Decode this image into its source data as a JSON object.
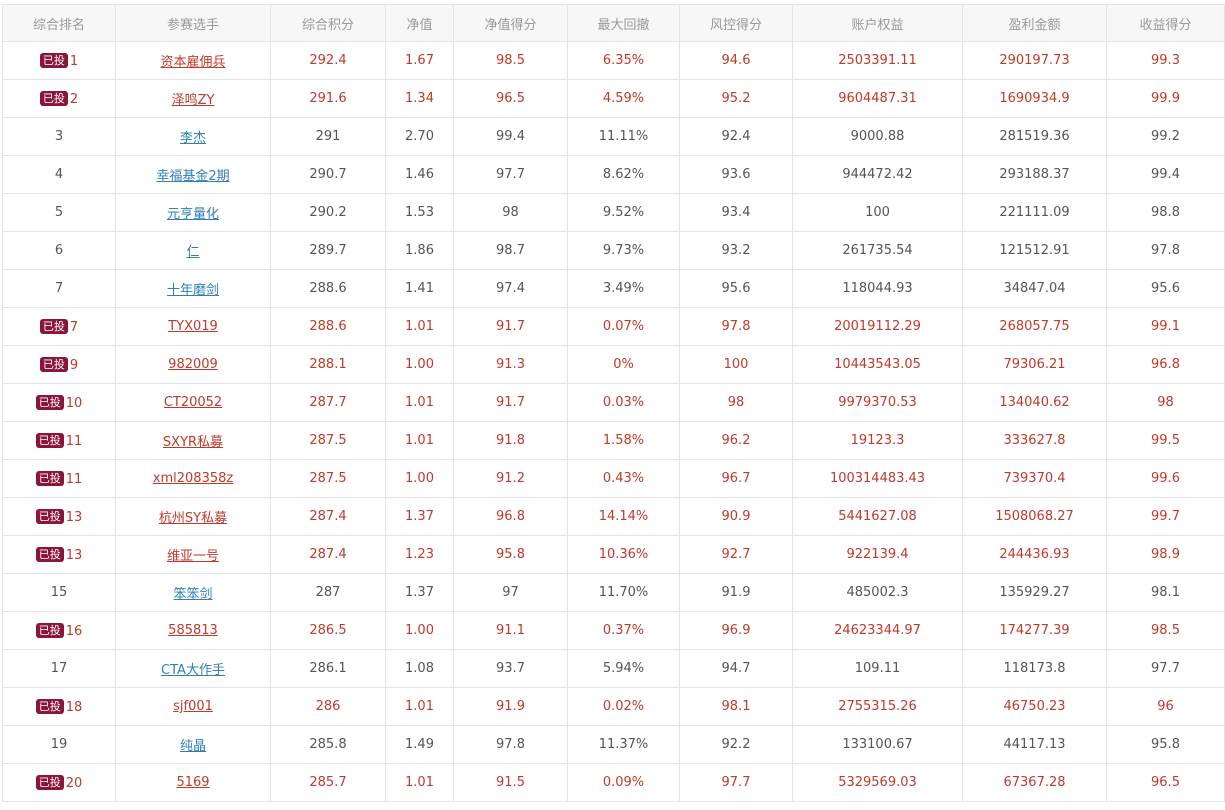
{
  "headers": [
    "综合排名",
    "参赛选手",
    "综合积分",
    "净值",
    "净值得分",
    "最大回撤",
    "风控得分",
    "账户权益",
    "盈利金额",
    "收益得分"
  ],
  "badge_label": "已投",
  "colors": {
    "invested_text": "#c0392b",
    "normal_text": "#555555",
    "link": "#2f7fb5",
    "badge_bg": "#8b1538"
  },
  "rows": [
    {
      "invested": true,
      "rank": "1",
      "player": "资本雇佣兵",
      "score": "292.4",
      "nav": "1.67",
      "nav_score": "98.5",
      "max_dd": "6.35%",
      "risk_score": "94.6",
      "equity": "2503391.11",
      "profit": "290197.73",
      "return_score": "99.3"
    },
    {
      "invested": true,
      "rank": "2",
      "player": "泽鸣ZY",
      "score": "291.6",
      "nav": "1.34",
      "nav_score": "96.5",
      "max_dd": "4.59%",
      "risk_score": "95.2",
      "equity": "9604487.31",
      "profit": "1690934.9",
      "return_score": "99.9"
    },
    {
      "invested": false,
      "rank": "3",
      "player": "李杰",
      "score": "291",
      "nav": "2.70",
      "nav_score": "99.4",
      "max_dd": "11.11%",
      "risk_score": "92.4",
      "equity": "9000.88",
      "profit": "281519.36",
      "return_score": "99.2"
    },
    {
      "invested": false,
      "rank": "4",
      "player": "幸福基金2期",
      "score": "290.7",
      "nav": "1.46",
      "nav_score": "97.7",
      "max_dd": "8.62%",
      "risk_score": "93.6",
      "equity": "944472.42",
      "profit": "293188.37",
      "return_score": "99.4"
    },
    {
      "invested": false,
      "rank": "5",
      "player": "元亨量化",
      "score": "290.2",
      "nav": "1.53",
      "nav_score": "98",
      "max_dd": "9.52%",
      "risk_score": "93.4",
      "equity": "100",
      "profit": "221111.09",
      "return_score": "98.8"
    },
    {
      "invested": false,
      "rank": "6",
      "player": "仁",
      "score": "289.7",
      "nav": "1.86",
      "nav_score": "98.7",
      "max_dd": "9.73%",
      "risk_score": "93.2",
      "equity": "261735.54",
      "profit": "121512.91",
      "return_score": "97.8"
    },
    {
      "invested": false,
      "rank": "7",
      "player": "十年磨剑",
      "score": "288.6",
      "nav": "1.41",
      "nav_score": "97.4",
      "max_dd": "3.49%",
      "risk_score": "95.6",
      "equity": "118044.93",
      "profit": "34847.04",
      "return_score": "95.6"
    },
    {
      "invested": true,
      "rank": "7",
      "player": "TYX019",
      "score": "288.6",
      "nav": "1.01",
      "nav_score": "91.7",
      "max_dd": "0.07%",
      "risk_score": "97.8",
      "equity": "20019112.29",
      "profit": "268057.75",
      "return_score": "99.1"
    },
    {
      "invested": true,
      "rank": "9",
      "player": "982009",
      "score": "288.1",
      "nav": "1.00",
      "nav_score": "91.3",
      "max_dd": "0%",
      "risk_score": "100",
      "equity": "10443543.05",
      "profit": "79306.21",
      "return_score": "96.8"
    },
    {
      "invested": true,
      "rank": "10",
      "player": "CT20052",
      "score": "287.7",
      "nav": "1.01",
      "nav_score": "91.7",
      "max_dd": "0.03%",
      "risk_score": "98",
      "equity": "9979370.53",
      "profit": "134040.62",
      "return_score": "98"
    },
    {
      "invested": true,
      "rank": "11",
      "player": "SXYR私募",
      "score": "287.5",
      "nav": "1.01",
      "nav_score": "91.8",
      "max_dd": "1.58%",
      "risk_score": "96.2",
      "equity": "19123.3",
      "profit": "333627.8",
      "return_score": "99.5"
    },
    {
      "invested": true,
      "rank": "11",
      "player": "xml208358z",
      "score": "287.5",
      "nav": "1.00",
      "nav_score": "91.2",
      "max_dd": "0.43%",
      "risk_score": "96.7",
      "equity": "100314483.43",
      "profit": "739370.4",
      "return_score": "99.6"
    },
    {
      "invested": true,
      "rank": "13",
      "player": "杭州SY私募",
      "score": "287.4",
      "nav": "1.37",
      "nav_score": "96.8",
      "max_dd": "14.14%",
      "risk_score": "90.9",
      "equity": "5441627.08",
      "profit": "1508068.27",
      "return_score": "99.7"
    },
    {
      "invested": true,
      "rank": "13",
      "player": "维亚一号",
      "score": "287.4",
      "nav": "1.23",
      "nav_score": "95.8",
      "max_dd": "10.36%",
      "risk_score": "92.7",
      "equity": "922139.4",
      "profit": "244436.93",
      "return_score": "98.9"
    },
    {
      "invested": false,
      "rank": "15",
      "player": "笨笨剑",
      "score": "287",
      "nav": "1.37",
      "nav_score": "97",
      "max_dd": "11.70%",
      "risk_score": "91.9",
      "equity": "485002.3",
      "profit": "135929.27",
      "return_score": "98.1"
    },
    {
      "invested": true,
      "rank": "16",
      "player": "585813",
      "score": "286.5",
      "nav": "1.00",
      "nav_score": "91.1",
      "max_dd": "0.37%",
      "risk_score": "96.9",
      "equity": "24623344.97",
      "profit": "174277.39",
      "return_score": "98.5"
    },
    {
      "invested": false,
      "rank": "17",
      "player": "CTA大作手",
      "score": "286.1",
      "nav": "1.08",
      "nav_score": "93.7",
      "max_dd": "5.94%",
      "risk_score": "94.7",
      "equity": "109.11",
      "profit": "118173.8",
      "return_score": "97.7"
    },
    {
      "invested": true,
      "rank": "18",
      "player": "sjf001",
      "score": "286",
      "nav": "1.01",
      "nav_score": "91.9",
      "max_dd": "0.02%",
      "risk_score": "98.1",
      "equity": "2755315.26",
      "profit": "46750.23",
      "return_score": "96"
    },
    {
      "invested": false,
      "rank": "19",
      "player": "纯晶",
      "score": "285.8",
      "nav": "1.49",
      "nav_score": "97.8",
      "max_dd": "11.37%",
      "risk_score": "92.2",
      "equity": "133100.67",
      "profit": "44117.13",
      "return_score": "95.8"
    },
    {
      "invested": true,
      "rank": "20",
      "player": "5169",
      "score": "285.7",
      "nav": "1.01",
      "nav_score": "91.5",
      "max_dd": "0.09%",
      "risk_score": "97.7",
      "equity": "5329569.03",
      "profit": "67367.28",
      "return_score": "96.5"
    }
  ]
}
